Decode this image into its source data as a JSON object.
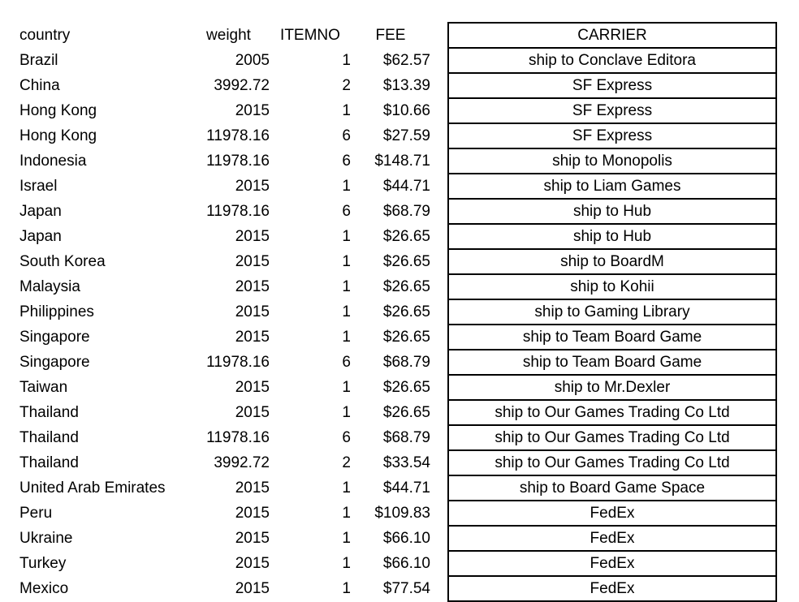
{
  "headers": {
    "country": "country",
    "weight": "weight",
    "itemno": "ITEMNO",
    "fee": "FEE",
    "carrier": "CARRIER"
  },
  "rows": [
    {
      "country": "Brazil",
      "weight": "2005",
      "itemno": "1",
      "fee": "$62.57",
      "carrier": "ship to Conclave Editora"
    },
    {
      "country": "China",
      "weight": "3992.72",
      "itemno": "2",
      "fee": "$13.39",
      "carrier": "SF Express"
    },
    {
      "country": "Hong Kong",
      "weight": "2015",
      "itemno": "1",
      "fee": "$10.66",
      "carrier": "SF Express"
    },
    {
      "country": "Hong Kong",
      "weight": "11978.16",
      "itemno": "6",
      "fee": "$27.59",
      "carrier": "SF Express"
    },
    {
      "country": "Indonesia",
      "weight": "11978.16",
      "itemno": "6",
      "fee": "$148.71",
      "carrier": "ship to Monopolis"
    },
    {
      "country": "Israel",
      "weight": "2015",
      "itemno": "1",
      "fee": "$44.71",
      "carrier": "ship to Liam Games"
    },
    {
      "country": "Japan",
      "weight": "11978.16",
      "itemno": "6",
      "fee": "$68.79",
      "carrier": "ship to Hub"
    },
    {
      "country": "Japan",
      "weight": "2015",
      "itemno": "1",
      "fee": "$26.65",
      "carrier": "ship to Hub"
    },
    {
      "country": "South Korea",
      "weight": "2015",
      "itemno": "1",
      "fee": "$26.65",
      "carrier": "ship to BoardM"
    },
    {
      "country": "Malaysia",
      "weight": "2015",
      "itemno": "1",
      "fee": "$26.65",
      "carrier": "ship to Kohii"
    },
    {
      "country": "Philippines",
      "weight": "2015",
      "itemno": "1",
      "fee": "$26.65",
      "carrier": "ship to Gaming Library"
    },
    {
      "country": "Singapore",
      "weight": "2015",
      "itemno": "1",
      "fee": "$26.65",
      "carrier": "ship to Team Board Game"
    },
    {
      "country": "Singapore",
      "weight": "11978.16",
      "itemno": "6",
      "fee": "$68.79",
      "carrier": "ship to Team Board Game"
    },
    {
      "country": "Taiwan",
      "weight": "2015",
      "itemno": "1",
      "fee": "$26.65",
      "carrier": "ship to Mr.Dexler"
    },
    {
      "country": "Thailand",
      "weight": "2015",
      "itemno": "1",
      "fee": "$26.65",
      "carrier": "ship to Our Games Trading Co Ltd"
    },
    {
      "country": "Thailand",
      "weight": "11978.16",
      "itemno": "6",
      "fee": "$68.79",
      "carrier": "ship to Our Games Trading Co Ltd"
    },
    {
      "country": "Thailand",
      "weight": "3992.72",
      "itemno": "2",
      "fee": "$33.54",
      "carrier": "ship to Our Games Trading Co Ltd"
    },
    {
      "country": "United Arab Emirates",
      "weight": "2015",
      "itemno": "1",
      "fee": "$44.71",
      "carrier": "ship to Board Game Space"
    },
    {
      "country": "Peru",
      "weight": "2015",
      "itemno": "1",
      "fee": "$109.83",
      "carrier": "FedEx"
    },
    {
      "country": "Ukraine",
      "weight": "2015",
      "itemno": "1",
      "fee": "$66.10",
      "carrier": "FedEx"
    },
    {
      "country": "Turkey",
      "weight": "2015",
      "itemno": "1",
      "fee": "$66.10",
      "carrier": "FedEx"
    },
    {
      "country": "Mexico",
      "weight": "2015",
      "itemno": "1",
      "fee": "$77.54",
      "carrier": "FedEx"
    }
  ]
}
